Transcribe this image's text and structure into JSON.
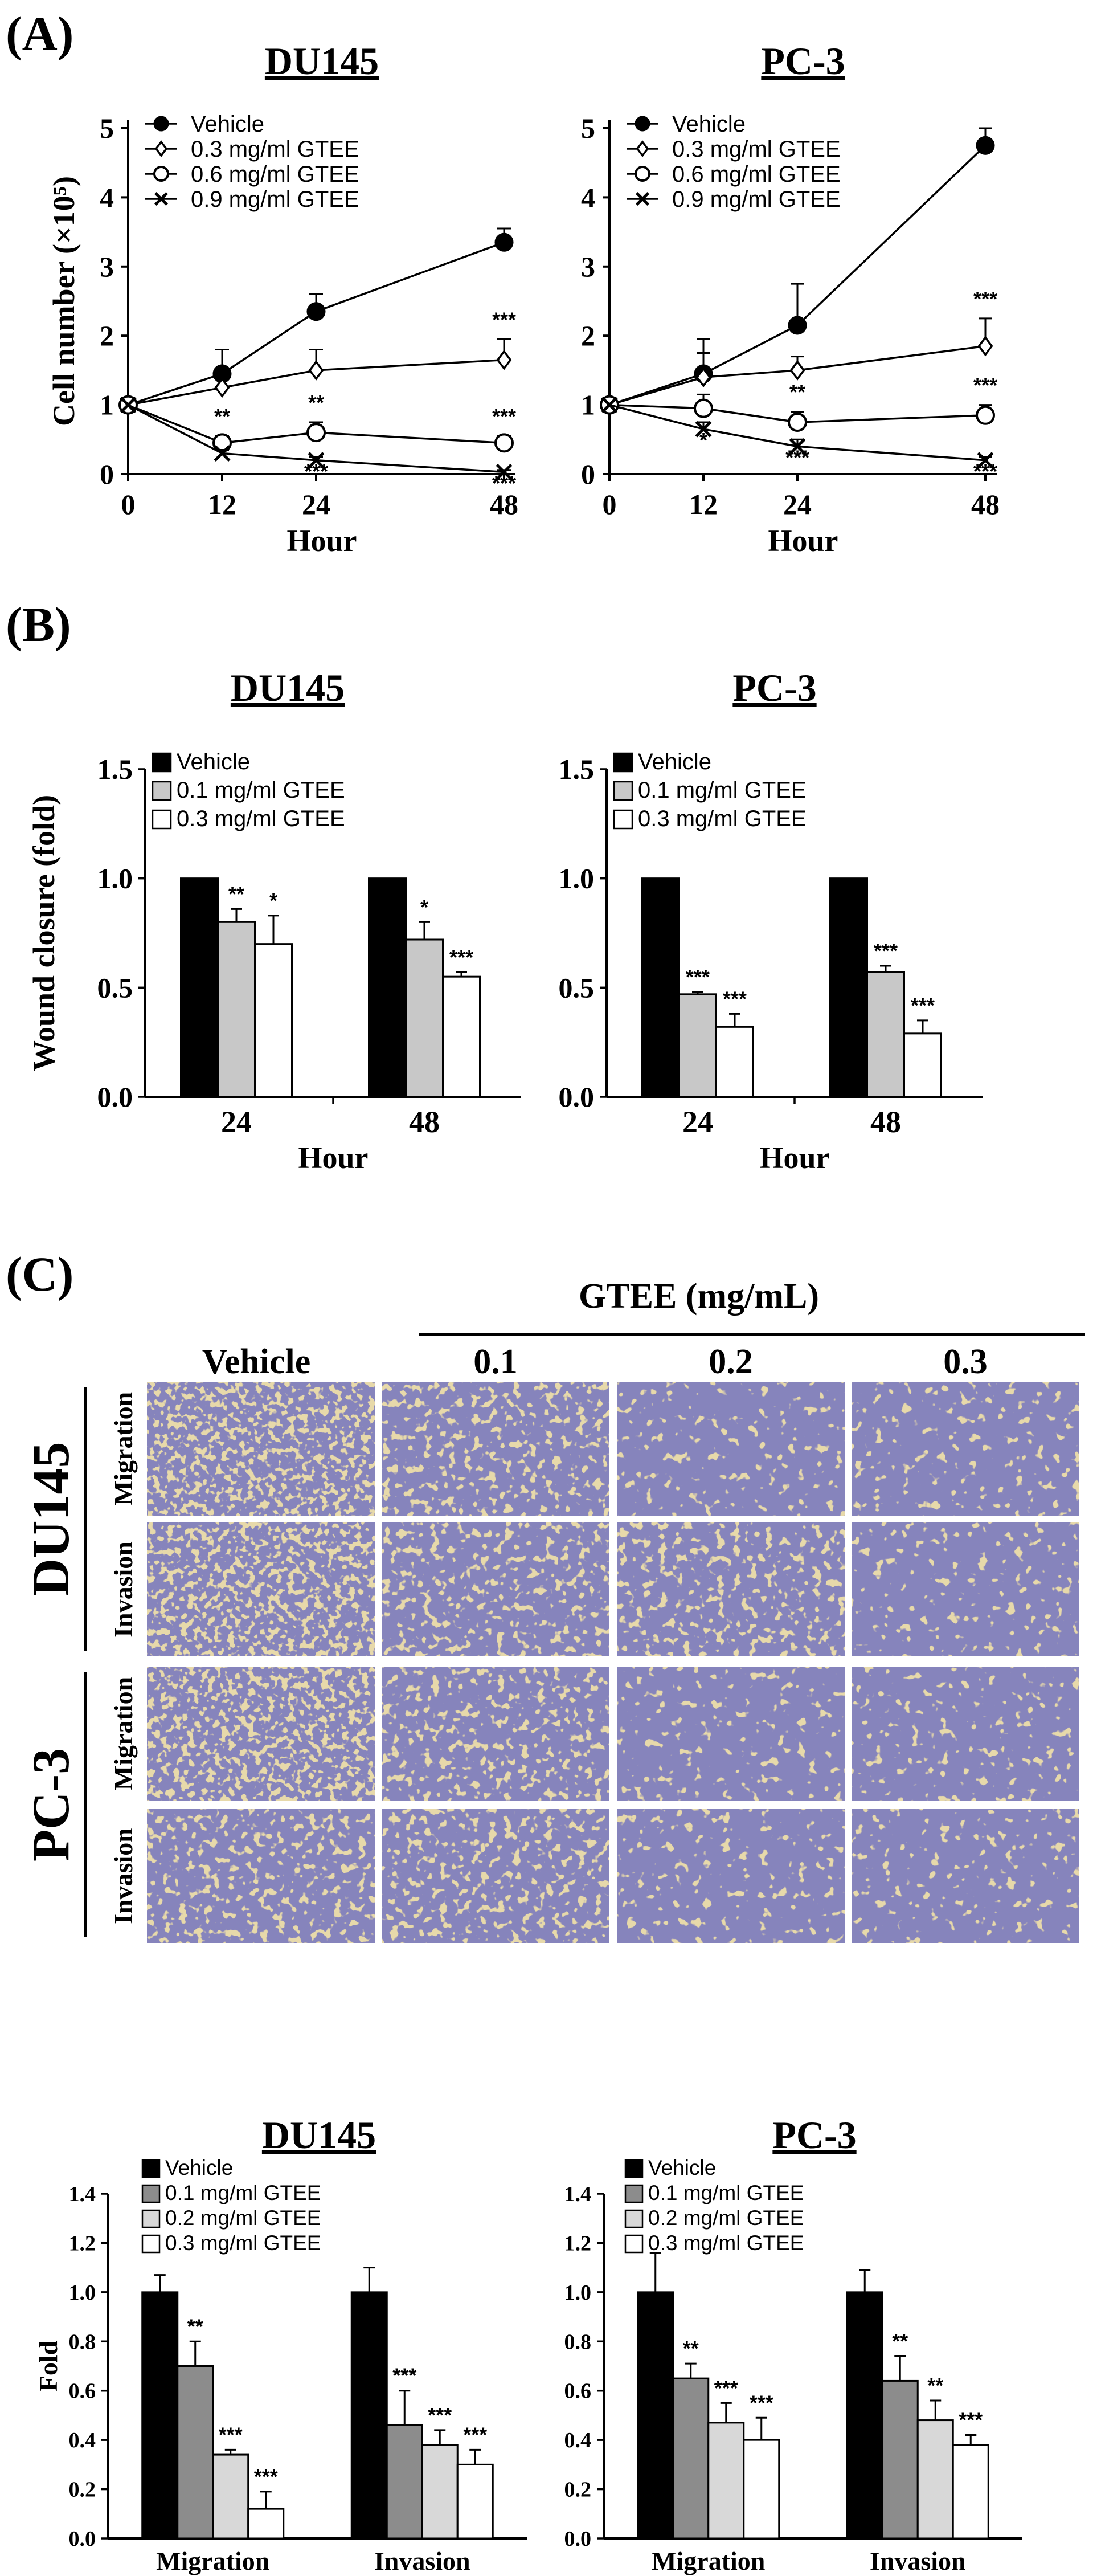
{
  "panels": {
    "A": "(A)",
    "B": "(B)",
    "C": "(C)"
  },
  "colors": {
    "vehicle": "#000000",
    "gtee_01": "#c8c8c8",
    "gtee_02": "#d8d8d8",
    "gtee_03": "#ffffff",
    "gtee_01_C": "#8c8c8c",
    "cell_bg": "#e7d9aa",
    "cell_stain": "#3e3a7e"
  },
  "panelC": {
    "header": "GTEE (mg/mL)",
    "columns": [
      "Vehicle",
      "0.1",
      "0.2",
      "0.3"
    ],
    "cell_lines": [
      {
        "name": "DU145",
        "rows": [
          "Migration",
          "Invasion"
        ]
      },
      {
        "name": "PC-3",
        "rows": [
          "Migration",
          "Invasion"
        ]
      }
    ]
  },
  "chart_data": [
    {
      "id": "A1",
      "type": "line",
      "title": "DU145",
      "xlabel": "Hour",
      "ylabel": "Cell number (×10⁵)",
      "x": [
        0,
        12,
        24,
        48
      ],
      "xticks": [
        "0",
        "12",
        "24",
        "48"
      ],
      "ylim": [
        0,
        5
      ],
      "yticks": [
        "0",
        "1",
        "2",
        "3",
        "4",
        "5"
      ],
      "legend_position": "top-left",
      "series": [
        {
          "name": "Vehicle",
          "marker": "filled-circle",
          "values": [
            1,
            1.45,
            2.35,
            3.35
          ],
          "err": [
            0,
            0.35,
            0.25,
            0.2
          ],
          "sig": [
            "",
            "",
            "",
            ""
          ]
        },
        {
          "name": "0.3 mg/ml GTEE",
          "marker": "diamond",
          "values": [
            1,
            1.25,
            1.5,
            1.65
          ],
          "err": [
            0,
            0.2,
            0.3,
            0.3
          ],
          "sig": [
            "",
            "",
            "",
            "***"
          ]
        },
        {
          "name": "0.6 mg/ml GTEE",
          "marker": "open-circle",
          "values": [
            1,
            0.45,
            0.6,
            0.45
          ],
          "err": [
            0,
            0.1,
            0.15,
            0.1
          ],
          "sig": [
            "",
            "**",
            "**",
            "***"
          ]
        },
        {
          "name": "0.9 mg/ml GTEE",
          "marker": "x",
          "values": [
            1,
            0.3,
            0.2,
            0.03
          ],
          "err": [
            0,
            0.05,
            0.05,
            0.03
          ],
          "sig": [
            "",
            "",
            "***",
            "***"
          ]
        }
      ]
    },
    {
      "id": "A2",
      "type": "line",
      "title": "PC-3",
      "xlabel": "Hour",
      "ylabel": "",
      "x": [
        0,
        12,
        24,
        48
      ],
      "xticks": [
        "0",
        "12",
        "24",
        "48"
      ],
      "ylim": [
        0,
        5
      ],
      "yticks": [
        "0",
        "1",
        "2",
        "3",
        "4",
        "5"
      ],
      "legend_position": "top-left",
      "series": [
        {
          "name": "Vehicle",
          "marker": "filled-circle",
          "values": [
            1,
            1.45,
            2.15,
            4.75
          ],
          "err": [
            0,
            0.5,
            0.6,
            0.25
          ],
          "sig": [
            "",
            "",
            "",
            ""
          ]
        },
        {
          "name": "0.3 mg/ml GTEE",
          "marker": "diamond",
          "values": [
            1,
            1.4,
            1.5,
            1.85
          ],
          "err": [
            0,
            0.35,
            0.2,
            0.4
          ],
          "sig": [
            "",
            "",
            "",
            "***"
          ]
        },
        {
          "name": "0.6 mg/ml GTEE",
          "marker": "open-circle",
          "values": [
            1,
            0.95,
            0.75,
            0.85
          ],
          "err": [
            0,
            0.2,
            0.15,
            0.15
          ],
          "sig": [
            "",
            "",
            "**",
            "***"
          ]
        },
        {
          "name": "0.9 mg/ml GTEE",
          "marker": "x",
          "values": [
            1,
            0.65,
            0.4,
            0.2
          ],
          "err": [
            0,
            0.1,
            0.1,
            0.05
          ],
          "sig": [
            "",
            "*",
            "***",
            "***"
          ]
        }
      ]
    },
    {
      "id": "B1",
      "type": "bar",
      "title": "DU145",
      "xlabel": "Hour",
      "ylabel": "Wound closure (fold)",
      "categories": [
        "24",
        "48"
      ],
      "ylim": [
        0,
        1.5
      ],
      "yticks": [
        "0.0",
        "0.5",
        "1.0",
        "1.5"
      ],
      "legend_position": "top-left",
      "series": [
        {
          "name": "Vehicle",
          "values": [
            1.0,
            1.0
          ],
          "err": [
            0,
            0
          ],
          "sig": [
            "",
            ""
          ]
        },
        {
          "name": "0.1 mg/ml GTEE",
          "values": [
            0.8,
            0.72
          ],
          "err": [
            0.06,
            0.08
          ],
          "sig": [
            "**",
            "*"
          ]
        },
        {
          "name": "0.3 mg/ml GTEE",
          "values": [
            0.7,
            0.55
          ],
          "err": [
            0.13,
            0.02
          ],
          "sig": [
            "*",
            "***"
          ]
        }
      ]
    },
    {
      "id": "B2",
      "type": "bar",
      "title": "PC-3",
      "xlabel": "Hour",
      "ylabel": "",
      "categories": [
        "24",
        "48"
      ],
      "ylim": [
        0,
        1.5
      ],
      "yticks": [
        "0.0",
        "0.5",
        "1.0",
        "1.5"
      ],
      "legend_position": "top-left",
      "series": [
        {
          "name": "Vehicle",
          "values": [
            1.0,
            1.0
          ],
          "err": [
            0,
            0
          ],
          "sig": [
            "",
            ""
          ]
        },
        {
          "name": "0.1 mg/ml GTEE",
          "values": [
            0.47,
            0.57
          ],
          "err": [
            0.01,
            0.03
          ],
          "sig": [
            "***",
            "***"
          ]
        },
        {
          "name": "0.3 mg/ml GTEE",
          "values": [
            0.32,
            0.29
          ],
          "err": [
            0.06,
            0.06
          ],
          "sig": [
            "***",
            "***"
          ]
        }
      ]
    },
    {
      "id": "C1",
      "type": "bar",
      "title": "DU145",
      "xlabel": "",
      "ylabel": "Fold",
      "categories": [
        "Migration",
        "Invasion"
      ],
      "ylim": [
        0,
        1.4
      ],
      "yticks": [
        "0.0",
        "0.2",
        "0.4",
        "0.6",
        "0.8",
        "1.0",
        "1.2",
        "1.4"
      ],
      "legend_position": "top-left",
      "series": [
        {
          "name": "Vehicle",
          "values": [
            1.0,
            1.0
          ],
          "err": [
            0.07,
            0.1
          ],
          "sig": [
            "",
            ""
          ]
        },
        {
          "name": "0.1 mg/ml GTEE",
          "values": [
            0.7,
            0.46
          ],
          "err": [
            0.1,
            0.14
          ],
          "sig": [
            "**",
            "***"
          ]
        },
        {
          "name": "0.2 mg/ml GTEE",
          "values": [
            0.34,
            0.38
          ],
          "err": [
            0.02,
            0.06
          ],
          "sig": [
            "***",
            "***"
          ]
        },
        {
          "name": "0.3 mg/ml GTEE",
          "values": [
            0.12,
            0.3
          ],
          "err": [
            0.07,
            0.06
          ],
          "sig": [
            "***",
            "***"
          ]
        }
      ]
    },
    {
      "id": "C2",
      "type": "bar",
      "title": "PC-3",
      "xlabel": "",
      "ylabel": "",
      "categories": [
        "Migration",
        "Invasion"
      ],
      "ylim": [
        0,
        1.4
      ],
      "yticks": [
        "0.0",
        "0.2",
        "0.4",
        "0.6",
        "0.8",
        "1.0",
        "1.2",
        "1.4"
      ],
      "legend_position": "top-left",
      "series": [
        {
          "name": "Vehicle",
          "values": [
            1.0,
            1.0
          ],
          "err": [
            0.16,
            0.09
          ],
          "sig": [
            "",
            ""
          ]
        },
        {
          "name": "0.1 mg/ml GTEE",
          "values": [
            0.65,
            0.64
          ],
          "err": [
            0.06,
            0.1
          ],
          "sig": [
            "**",
            "**"
          ]
        },
        {
          "name": "0.2 mg/ml GTEE",
          "values": [
            0.47,
            0.48
          ],
          "err": [
            0.08,
            0.08
          ],
          "sig": [
            "***",
            "**"
          ]
        },
        {
          "name": "0.3 mg/ml GTEE",
          "values": [
            0.4,
            0.38
          ],
          "err": [
            0.09,
            0.04
          ],
          "sig": [
            "***",
            "***"
          ]
        }
      ]
    }
  ]
}
